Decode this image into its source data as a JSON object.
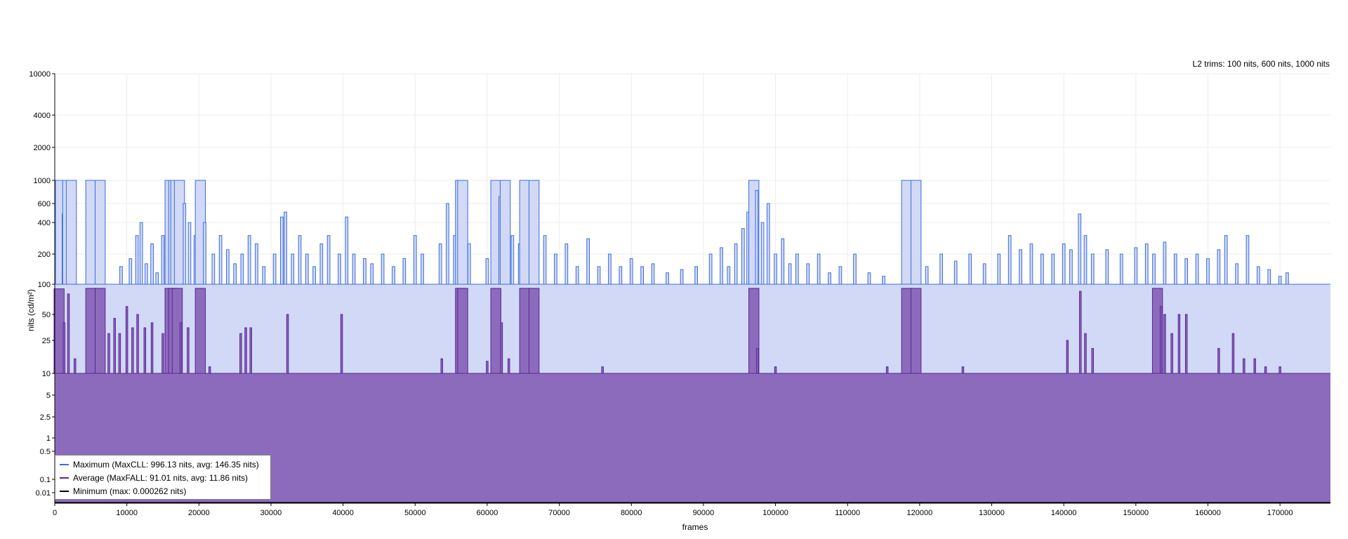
{
  "chart_data": {
    "type": "area",
    "header_note": "L2 trims: 100 nits, 600 nits, 1000 nits",
    "xlabel": "frames",
    "ylabel": "nits (cd/m²)",
    "xlim": [
      0,
      177000
    ],
    "ylim": [
      0.005,
      10000
    ],
    "y_scale": "piecewise (log-like) with linear bands",
    "x_ticks": [
      0,
      10000,
      20000,
      30000,
      40000,
      50000,
      60000,
      70000,
      80000,
      90000,
      100000,
      110000,
      120000,
      130000,
      140000,
      150000,
      160000,
      170000
    ],
    "y_ticks": [
      "10000",
      "4000",
      "2000",
      "1000",
      "600",
      "400",
      "200",
      "100",
      "50",
      "25",
      "10",
      "5",
      "2.5",
      "1",
      "0.5",
      "0.1",
      "0.01"
    ],
    "grid": true,
    "legend_position": "bottom-left",
    "colors": {
      "maximum": "#3b6be0",
      "maximum_fill": "#d1d9f6",
      "average": "#5a2494",
      "average_fill": "#8c6bbc",
      "minimum": "#000000"
    },
    "series": [
      {
        "name": "Maximum (MaxCLL: 996.13 nits, avg: 146.35 nits)",
        "key": "maximum",
        "baseline": 100,
        "spikes": [
          [
            200,
            520
          ],
          [
            800,
            1000
          ],
          [
            1200,
            480
          ],
          [
            1800,
            1000
          ],
          [
            2300,
            1000
          ],
          [
            5000,
            1000
          ],
          [
            6300,
            1000
          ],
          [
            9200,
            150
          ],
          [
            10500,
            180
          ],
          [
            11400,
            300
          ],
          [
            12000,
            400
          ],
          [
            12700,
            160
          ],
          [
            13500,
            250
          ],
          [
            14200,
            130
          ],
          [
            15000,
            300
          ],
          [
            16000,
            1000
          ],
          [
            16500,
            1000
          ],
          [
            16800,
            1000
          ],
          [
            17300,
            1000
          ],
          [
            18000,
            600
          ],
          [
            18700,
            400
          ],
          [
            19500,
            300
          ],
          [
            20200,
            1000
          ],
          [
            20800,
            400
          ],
          [
            22000,
            200
          ],
          [
            23000,
            300
          ],
          [
            24000,
            220
          ],
          [
            25000,
            160
          ],
          [
            26000,
            200
          ],
          [
            27000,
            300
          ],
          [
            28000,
            250
          ],
          [
            29000,
            150
          ],
          [
            30500,
            200
          ],
          [
            31500,
            450
          ],
          [
            32000,
            500
          ],
          [
            33000,
            200
          ],
          [
            34000,
            300
          ],
          [
            35000,
            200
          ],
          [
            36000,
            150
          ],
          [
            37000,
            250
          ],
          [
            38000,
            300
          ],
          [
            39500,
            200
          ],
          [
            40500,
            450
          ],
          [
            41500,
            200
          ],
          [
            43000,
            180
          ],
          [
            44000,
            160
          ],
          [
            45500,
            200
          ],
          [
            47000,
            150
          ],
          [
            48500,
            180
          ],
          [
            50000,
            300
          ],
          [
            51000,
            200
          ],
          [
            53500,
            250
          ],
          [
            54500,
            600
          ],
          [
            55500,
            300
          ],
          [
            56300,
            1000
          ],
          [
            56600,
            1000
          ],
          [
            57500,
            250
          ],
          [
            60000,
            180
          ],
          [
            61200,
            1000
          ],
          [
            61800,
            700
          ],
          [
            62500,
            1000
          ],
          [
            63500,
            300
          ],
          [
            64500,
            250
          ],
          [
            65200,
            1000
          ],
          [
            66500,
            1000
          ],
          [
            68000,
            300
          ],
          [
            69500,
            200
          ],
          [
            71000,
            250
          ],
          [
            72500,
            150
          ],
          [
            74000,
            280
          ],
          [
            75500,
            150
          ],
          [
            77000,
            200
          ],
          [
            78500,
            150
          ],
          [
            80000,
            180
          ],
          [
            81500,
            150
          ],
          [
            83000,
            160
          ],
          [
            85000,
            130
          ],
          [
            87000,
            140
          ],
          [
            89000,
            150
          ],
          [
            91000,
            200
          ],
          [
            92500,
            230
          ],
          [
            93500,
            150
          ],
          [
            94500,
            250
          ],
          [
            95500,
            350
          ],
          [
            96200,
            500
          ],
          [
            97000,
            1000
          ],
          [
            97400,
            800
          ],
          [
            98200,
            400
          ],
          [
            99000,
            600
          ],
          [
            100000,
            200
          ],
          [
            101000,
            280
          ],
          [
            102000,
            160
          ],
          [
            103000,
            200
          ],
          [
            104500,
            160
          ],
          [
            106000,
            200
          ],
          [
            107500,
            130
          ],
          [
            109000,
            150
          ],
          [
            111000,
            200
          ],
          [
            113000,
            130
          ],
          [
            115000,
            120
          ],
          [
            118200,
            1000
          ],
          [
            119500,
            1000
          ],
          [
            121000,
            150
          ],
          [
            123000,
            200
          ],
          [
            125000,
            170
          ],
          [
            127000,
            200
          ],
          [
            129000,
            160
          ],
          [
            131000,
            200
          ],
          [
            132500,
            300
          ],
          [
            134000,
            220
          ],
          [
            135500,
            250
          ],
          [
            137000,
            200
          ],
          [
            138500,
            200
          ],
          [
            140000,
            250
          ],
          [
            141000,
            220
          ],
          [
            142200,
            480
          ],
          [
            143000,
            300
          ],
          [
            144000,
            200
          ],
          [
            146000,
            220
          ],
          [
            148000,
            200
          ],
          [
            150000,
            230
          ],
          [
            151500,
            250
          ],
          [
            152500,
            200
          ],
          [
            154000,
            260
          ],
          [
            155500,
            200
          ],
          [
            157000,
            180
          ],
          [
            158500,
            200
          ],
          [
            160000,
            180
          ],
          [
            161500,
            220
          ],
          [
            162500,
            300
          ],
          [
            164000,
            160
          ],
          [
            165500,
            300
          ],
          [
            167000,
            150
          ],
          [
            168500,
            140
          ],
          [
            170000,
            120
          ],
          [
            171000,
            130
          ]
        ]
      },
      {
        "name": "Average (MaxFALL: 91.01 nits, avg: 11.86 nits)",
        "key": "average",
        "baseline": 10,
        "spikes": [
          [
            300,
            20
          ],
          [
            600,
            90
          ],
          [
            1300,
            40
          ],
          [
            1900,
            80
          ],
          [
            2800,
            15
          ],
          [
            4500,
            15
          ],
          [
            5000,
            91
          ],
          [
            6300,
            91
          ],
          [
            7500,
            30
          ],
          [
            8300,
            45
          ],
          [
            9000,
            30
          ],
          [
            10000,
            60
          ],
          [
            10800,
            35
          ],
          [
            11500,
            50
          ],
          [
            12500,
            35
          ],
          [
            13500,
            40
          ],
          [
            15000,
            30
          ],
          [
            16000,
            91
          ],
          [
            16500,
            91
          ],
          [
            17000,
            91
          ],
          [
            17500,
            40
          ],
          [
            18500,
            35
          ],
          [
            20200,
            91
          ],
          [
            21500,
            12
          ],
          [
            25800,
            30
          ],
          [
            26500,
            35
          ],
          [
            27200,
            35
          ],
          [
            32300,
            50
          ],
          [
            39800,
            50
          ],
          [
            53700,
            15
          ],
          [
            56300,
            91
          ],
          [
            56600,
            91
          ],
          [
            60000,
            14
          ],
          [
            61200,
            91
          ],
          [
            62000,
            40
          ],
          [
            63000,
            15
          ],
          [
            65200,
            91
          ],
          [
            66500,
            91
          ],
          [
            76000,
            12
          ],
          [
            97000,
            91
          ],
          [
            97500,
            20
          ],
          [
            100000,
            12
          ],
          [
            115500,
            12
          ],
          [
            118200,
            91
          ],
          [
            119500,
            91
          ],
          [
            126000,
            12
          ],
          [
            140500,
            25
          ],
          [
            142300,
            85
          ],
          [
            143000,
            30
          ],
          [
            144000,
            20
          ],
          [
            152500,
            25
          ],
          [
            153000,
            91
          ],
          [
            153500,
            60
          ],
          [
            154000,
            50
          ],
          [
            155000,
            30
          ],
          [
            156000,
            50
          ],
          [
            157000,
            50
          ],
          [
            161500,
            20
          ],
          [
            163500,
            30
          ],
          [
            165000,
            15
          ],
          [
            166500,
            15
          ],
          [
            168000,
            12
          ],
          [
            170000,
            12
          ]
        ]
      },
      {
        "name": "Minimum (max: 0.000262 nits)",
        "key": "minimum",
        "values_note": "near 0.0001 nits across all frames"
      }
    ]
  }
}
